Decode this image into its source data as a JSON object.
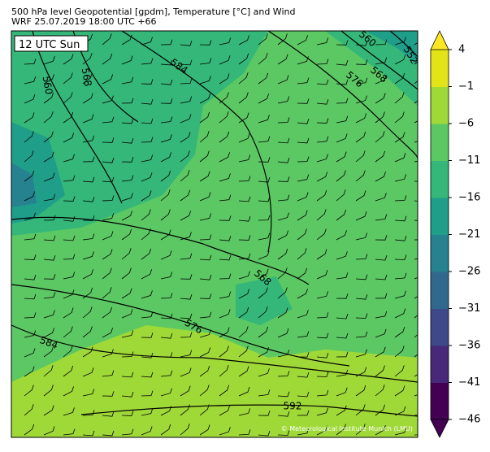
{
  "header": {
    "title": "500 hPa level Geopotential [gpdm], Temperature [°C] and Wind",
    "subtitle": "WRF 25.07.2019 18:00 UTC +66"
  },
  "map": {
    "time_label": "12 UTC Sun",
    "contour_labels": [
      "560",
      "568",
      "584",
      "560",
      "552",
      "576",
      "568",
      "568",
      "576",
      "584",
      "592"
    ],
    "credit": "© Meteorological Institute Munich (LMU)"
  },
  "colorbar": {
    "ticks": [
      "4",
      "−1",
      "−6",
      "−11",
      "−16",
      "−21",
      "−26",
      "−31",
      "−36",
      "−41",
      "−46"
    ],
    "colors": [
      "#440154",
      "#482878",
      "#3e4989",
      "#31688e",
      "#26828e",
      "#1f9e89",
      "#35b779",
      "#5cc863",
      "#9fd938",
      "#e2e418"
    ],
    "over_color": "#fde725",
    "under_color": "#440154"
  }
}
